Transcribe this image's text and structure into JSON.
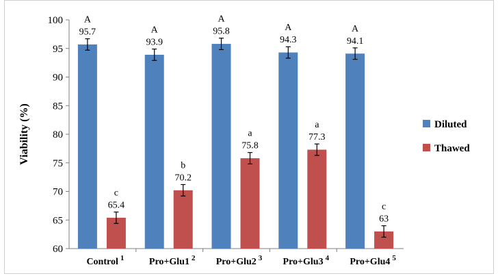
{
  "chart_data": {
    "type": "bar",
    "title": "",
    "xlabel": "",
    "ylabel": "Viability (%)",
    "ylim": [
      60,
      100
    ],
    "yticks": [
      60,
      65,
      70,
      75,
      80,
      85,
      90,
      95,
      100
    ],
    "grid": false,
    "legend_position": "right",
    "categories": [
      "Control",
      "Pro+Glu1",
      "Pro+Glu2",
      "Pro+Glu3",
      "Pro+Glu4"
    ],
    "category_superscripts": [
      "1",
      "2",
      "3",
      "4",
      "5"
    ],
    "series": [
      {
        "name": "Diluted",
        "color": "#4F81BD",
        "values": [
          95.7,
          93.9,
          95.8,
          94.3,
          94.1
        ],
        "labels": [
          "95.7",
          "93.9",
          "95.8",
          "94.3",
          "94.1"
        ],
        "error": [
          1.0,
          1.0,
          1.0,
          1.0,
          1.0
        ],
        "significance": [
          "A",
          "A",
          "A",
          "A",
          "A"
        ]
      },
      {
        "name": "Thawed",
        "color": "#C0504D",
        "values": [
          65.4,
          70.2,
          75.8,
          77.3,
          63
        ],
        "labels": [
          "65.4",
          "70.2",
          "75.8",
          "77.3",
          "63"
        ],
        "error": [
          1.0,
          1.0,
          1.0,
          1.0,
          1.0
        ],
        "significance": [
          "c",
          "b",
          "a",
          "a",
          "c"
        ]
      }
    ]
  }
}
